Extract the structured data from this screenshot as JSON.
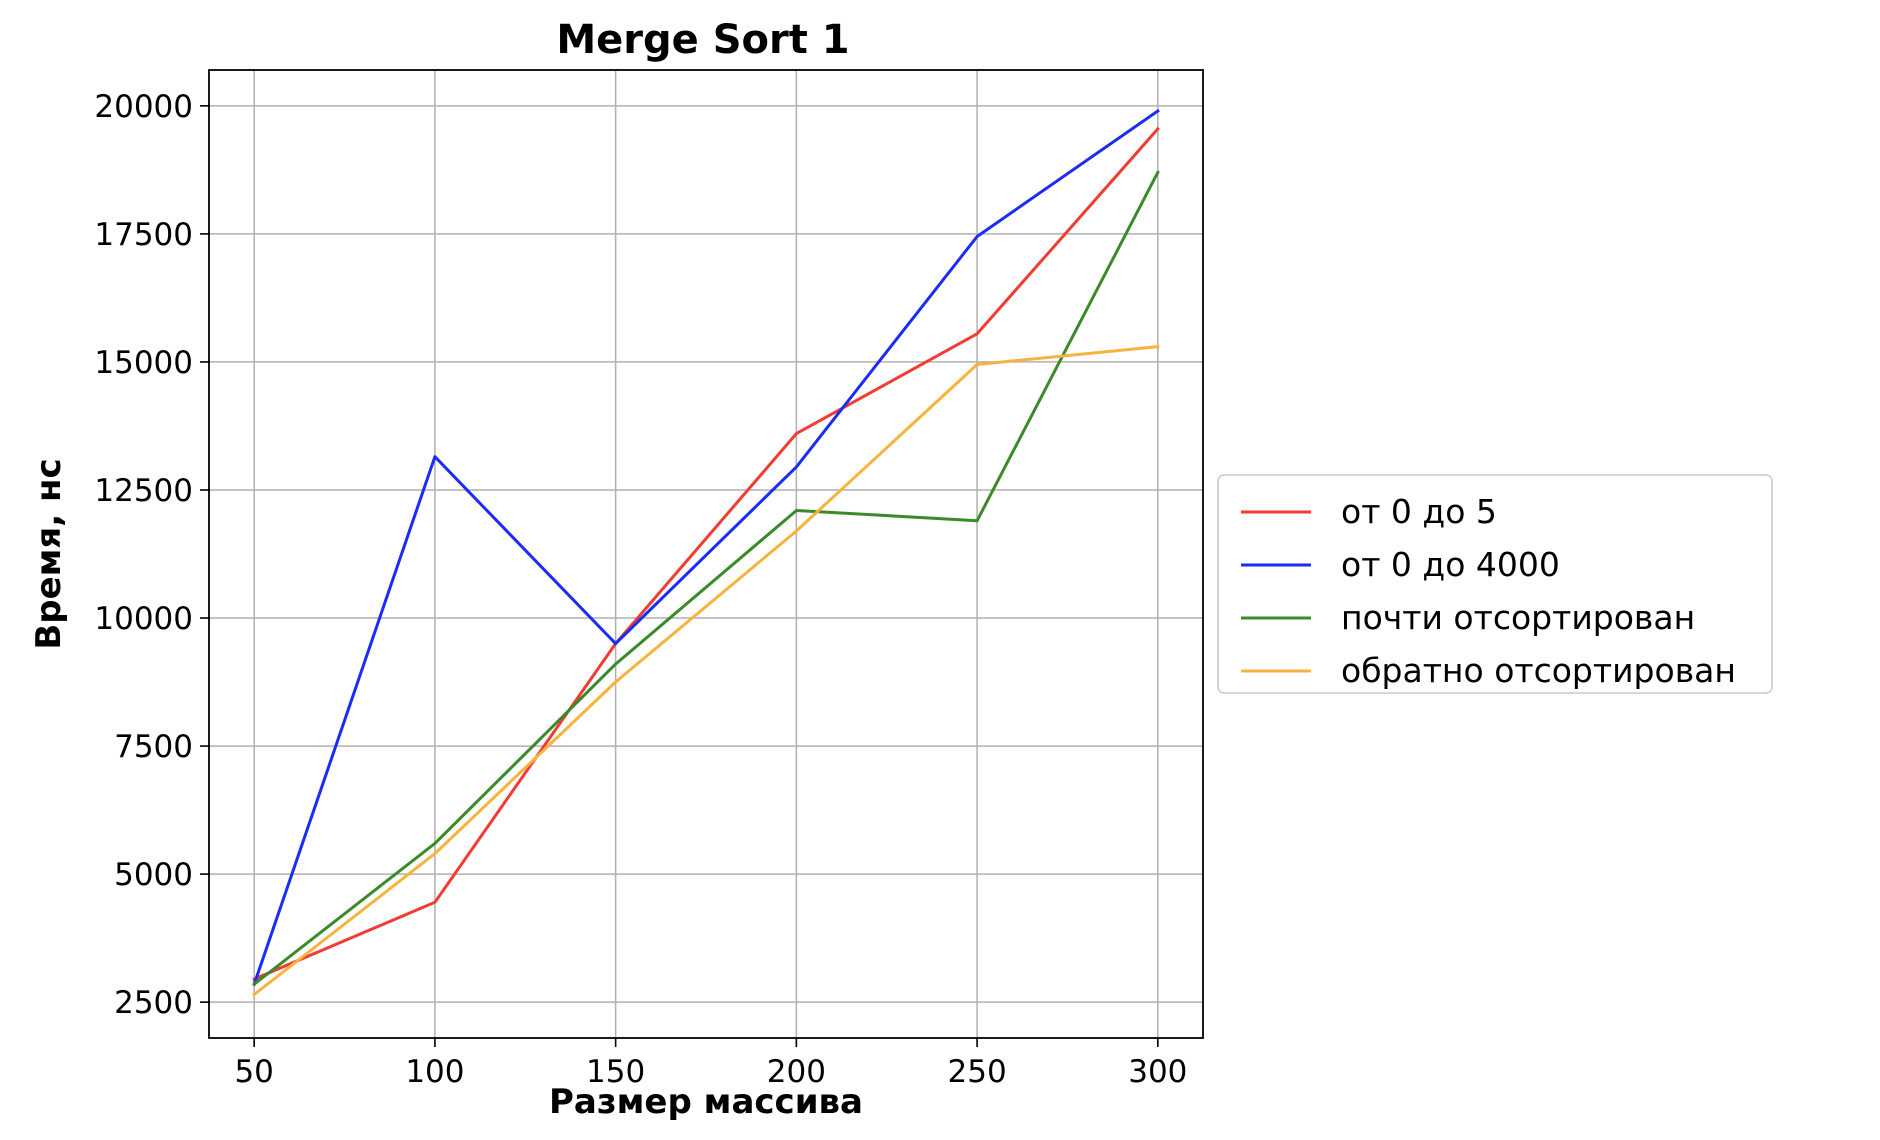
{
  "chart_data": {
    "type": "line",
    "title": "Merge Sort 1",
    "xlabel": "Размер массива",
    "ylabel": "Время, нс",
    "x": [
      50,
      100,
      150,
      200,
      250,
      300
    ],
    "xlim": [
      37.5,
      312.5
    ],
    "ylim": [
      1800,
      20700
    ],
    "xticks": [
      50,
      100,
      150,
      200,
      250,
      300
    ],
    "yticks": [
      2500,
      5000,
      7500,
      10000,
      12500,
      15000,
      17500,
      20000
    ],
    "grid": true,
    "legend_position": "center-right outside",
    "series": [
      {
        "name": "от 0 до 5",
        "color": "#f03c32",
        "values": [
          2950,
          4450,
          9500,
          13600,
          15550,
          19550
        ]
      },
      {
        "name": "от 0 до 4000",
        "color": "#1a2cf5",
        "values": [
          2850,
          13150,
          9500,
          12950,
          17450,
          19900
        ]
      },
      {
        "name": "почти отсортирован",
        "color": "#3a8a2a",
        "values": [
          2850,
          5600,
          9100,
          12100,
          11900,
          18700
        ]
      },
      {
        "name": "обратно отсортирован",
        "color": "#f6b33d",
        "values": [
          2650,
          5400,
          8750,
          11700,
          14950,
          15300
        ]
      }
    ]
  }
}
